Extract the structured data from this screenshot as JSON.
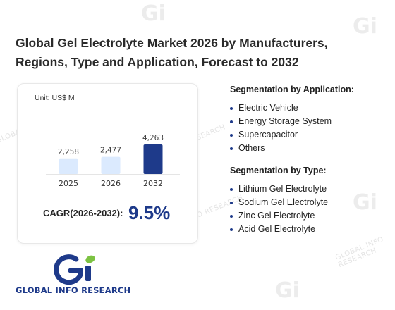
{
  "title_lines": [
    "Global Gel Electrolyte Market 2026 by Manufacturers,",
    "Regions, Type and Application, Forecast to 2032"
  ],
  "chart_data": {
    "type": "bar",
    "categories": [
      "2025",
      "2026",
      "2032"
    ],
    "values": [
      2258,
      2477,
      4263
    ],
    "value_labels": [
      "2,258",
      "2,477",
      "4,263"
    ],
    "unit": "Unit: US$ M",
    "ylim": [
      0,
      4263
    ],
    "grid": false,
    "colors": [
      "#dbeafe",
      "#dbeafe",
      "#1e3a8a"
    ]
  },
  "cagr": {
    "label": "CAGR(2026-2032):",
    "value": "9.5%"
  },
  "segmentation": {
    "application": {
      "heading": "Segmentation by Application:",
      "items": [
        "Electric Vehicle",
        "Energy Storage System",
        "Supercapacitor",
        "Others"
      ]
    },
    "type": {
      "heading": "Segmentation by Type:",
      "items": [
        "Lithium Gel Electrolyte",
        "Sodium Gel Electrolyte",
        "Zinc Gel Electrolyte",
        "Acid Gel Electrolyte"
      ]
    }
  },
  "logo": {
    "text": "GLOBAL INFO RESEARCH",
    "colors": {
      "primary": "#1e3a8a",
      "accent": "#7cc242"
    }
  },
  "watermark": {
    "mark": "Gi",
    "text": "GLOBAL INFO RESEARCH"
  }
}
